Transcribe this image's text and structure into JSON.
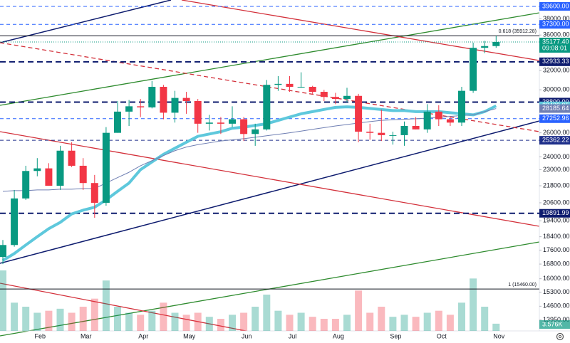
{
  "chart_data": {
    "type": "candlestick",
    "log_scale": true,
    "ylim": [
      13450,
      40450
    ],
    "yticks": [
      {
        "value": 38000,
        "label": "38000.00"
      },
      {
        "value": 36000,
        "label": "36000.00"
      },
      {
        "value": 32000,
        "label": "32000.00"
      },
      {
        "value": 30000,
        "label": "30000.00"
      },
      {
        "value": 26000,
        "label": "26000.00"
      },
      {
        "value": 24000,
        "label": "24000.00"
      },
      {
        "value": 23000,
        "label": "23000.00"
      },
      {
        "value": 21800,
        "label": "21800.00"
      },
      {
        "value": 20600,
        "label": "20600.00"
      },
      {
        "value": 19400,
        "label": "19400.00"
      },
      {
        "value": 18400,
        "label": "18400.00"
      },
      {
        "value": 17600,
        "label": "17600.00"
      },
      {
        "value": 16800,
        "label": "16800.00"
      },
      {
        "value": 16000,
        "label": "16000.00"
      },
      {
        "value": 15300,
        "label": "15300.00"
      },
      {
        "value": 14600,
        "label": "14600.00"
      },
      {
        "value": 13950,
        "label": "13950.00"
      }
    ],
    "categories": [
      null,
      null,
      null,
      "Feb",
      null,
      null,
      null,
      "Mar",
      null,
      null,
      null,
      null,
      "Apr",
      null,
      null,
      null,
      "May",
      null,
      null,
      null,
      null,
      "Jun",
      null,
      null,
      null,
      "Jul",
      null,
      null,
      null,
      "Aug",
      null,
      null,
      null,
      null,
      "Sep",
      null,
      null,
      null,
      "Oct",
      null,
      null,
      null,
      null,
      "Nov"
    ],
    "open": [
      17200,
      17900,
      20900,
      22900,
      23100,
      21800,
      24500,
      23300,
      22000,
      20600,
      26000,
      27900,
      28400,
      28300,
      30300,
      27800,
      29200,
      28900,
      26800,
      26900,
      26800,
      27200,
      25900,
      26300,
      30500,
      30600,
      30300,
      30300,
      29800,
      29300,
      29100,
      29400,
      26100,
      26000,
      25800,
      25800,
      26600,
      26300,
      27900,
      27200,
      26900,
      29900,
      34500,
      34700
    ],
    "high": [
      18200,
      21500,
      23300,
      23900,
      23500,
      24900,
      25200,
      23900,
      22600,
      26500,
      28900,
      29000,
      29100,
      30900,
      30500,
      29900,
      29800,
      29100,
      27600,
      27400,
      28400,
      27400,
      26800,
      31000,
      31400,
      31400,
      31800,
      30400,
      30000,
      29700,
      30200,
      29600,
      26800,
      28100,
      26100,
      27000,
      27400,
      28600,
      28500,
      27500,
      30300,
      35100,
      35300,
      35900
    ],
    "low": [
      16800,
      17800,
      20800,
      22500,
      21800,
      21500,
      23200,
      21500,
      19600,
      20400,
      26000,
      26600,
      27400,
      28200,
      27200,
      26900,
      27700,
      26000,
      26200,
      25900,
      26500,
      25300,
      24900,
      26200,
      29900,
      29800,
      30200,
      29600,
      28900,
      28600,
      28800,
      25200,
      25400,
      25300,
      25000,
      24900,
      26300,
      26000,
      26600,
      26600,
      26600,
      29700,
      33900,
      34500
    ],
    "close": [
      17900,
      20900,
      22900,
      23100,
      21800,
      24500,
      23300,
      22000,
      20600,
      26000,
      27900,
      28400,
      28300,
      30300,
      27800,
      29200,
      28900,
      26800,
      26900,
      26800,
      27200,
      25900,
      26300,
      30500,
      30600,
      30300,
      30300,
      29800,
      29300,
      29100,
      29400,
      26100,
      26000,
      25800,
      25800,
      26600,
      26300,
      27900,
      27200,
      26900,
      29900,
      34500,
      34700,
      35177.4
    ],
    "close_last_label": "35177.40",
    "countdown": "09:08:01",
    "up_color": "#089981",
    "down_color": "#f23645",
    "volume": [
      30000,
      14000,
      12000,
      9000,
      10000,
      11000,
      9000,
      12000,
      16000,
      25000,
      12000,
      9000,
      8000,
      10000,
      14000,
      9000,
      8000,
      9000,
      7000,
      6000,
      8000,
      9000,
      12000,
      18000,
      10000,
      8000,
      9000,
      7000,
      6000,
      6000,
      8000,
      20000,
      9000,
      12000,
      7000,
      8000,
      7000,
      9000,
      10000,
      8000,
      14000,
      26000,
      12000,
      3576
    ],
    "volume_last_label": "3.576K",
    "series": [
      {
        "color": "#5ec8dc",
        "width": 4,
        "last_label": "28439.95",
        "values": [
          17000,
          17400,
          17900,
          18400,
          18900,
          19300,
          19850,
          20100,
          20300,
          20800,
          21400,
          22000,
          23000,
          23600,
          24200,
          24700,
          25200,
          25700,
          25900,
          26100,
          26400,
          26500,
          26650,
          26800,
          27100,
          27400,
          27700,
          27900,
          28100,
          28300,
          28350,
          28300,
          28200,
          28100,
          28000,
          28000,
          27900,
          27900,
          27900,
          27800,
          27700,
          27600,
          27900,
          28439.95
        ]
      },
      {
        "color": "#6f7fb3",
        "width": 1,
        "last_label": "28185.64",
        "values": [
          21400,
          21450,
          21450,
          21500,
          21500,
          21550,
          21550,
          21600,
          21600,
          22000,
          22400,
          22800,
          23300,
          23700,
          24100,
          24500,
          24800,
          25000,
          25150,
          25300,
          25400,
          25500,
          25620,
          25750,
          25870,
          26000,
          26150,
          26300,
          26450,
          26600,
          26730,
          26860,
          26990,
          27100,
          27150,
          27200,
          27250,
          27300,
          27380,
          27460,
          27540,
          27600,
          27900,
          28185.64
        ]
      }
    ],
    "levels": [
      {
        "value": 39600,
        "label": "39600.00",
        "color": "#2962ff",
        "width": 1
      },
      {
        "value": 37300,
        "label": "37300.00",
        "color": "#2962ff",
        "width": 1
      },
      {
        "value": 32933.33,
        "label": "32933.33",
        "color": "#0d1b6e",
        "width": 2
      },
      {
        "value": 28800,
        "label": "28800.00",
        "color": "#0d1b6e",
        "width": 2
      },
      {
        "value": 27252.96,
        "label": "27252.96",
        "color": "#2962ff",
        "width": 1
      },
      {
        "value": 25362.22,
        "label": "25362.22",
        "color": "#1e2f8a",
        "width": 1
      },
      {
        "value": 19891.99,
        "label": "19891.99",
        "color": "#0d1b6e",
        "width": 2
      }
    ],
    "annotations": [
      {
        "value": 35912.28,
        "label": "0.618 (35912.28)"
      },
      {
        "value": 15460,
        "label": "1 (15460.00)"
      }
    ]
  }
}
